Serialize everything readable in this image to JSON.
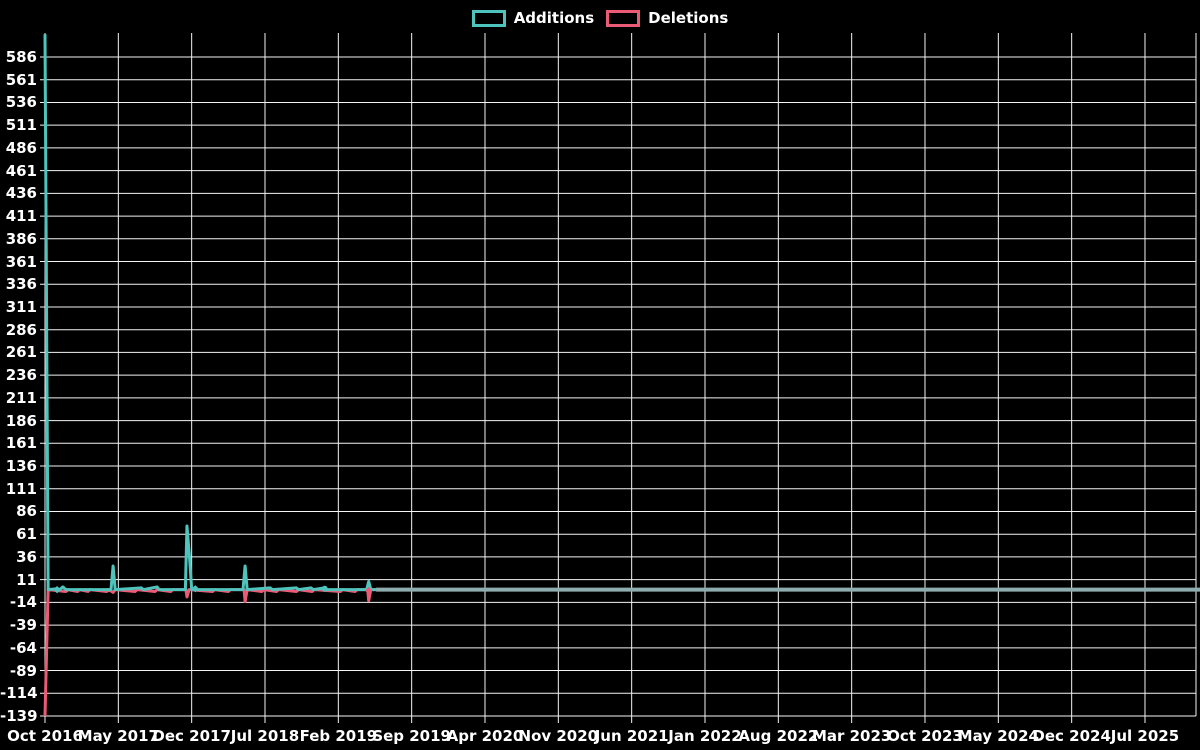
{
  "legend": {
    "items": [
      {
        "label": "Additions",
        "color": "#4fc4bd"
      },
      {
        "label": "Deletions",
        "color": "#ec5b76"
      }
    ]
  },
  "colors": {
    "background": "#000000",
    "grid": "#f4f4f4",
    "text": "#ffffff",
    "additions": "#4fc4bd",
    "deletions": "#ec5b76",
    "inactive_tail": "#8fadae"
  },
  "chart_data": {
    "type": "line",
    "title": "",
    "xlabel": "",
    "ylabel": "",
    "grid": true,
    "legend_position": "top-center",
    "x_axis": {
      "tick_labels": [
        "Oct 2016",
        "May 2017",
        "Dec 2017",
        "Jul 2018",
        "Feb 2019",
        "Sep 2019",
        "Apr 2020",
        "Nov 2020",
        "Jun 2021",
        "Jan 2022",
        "Aug 2022",
        "Mar 2023",
        "Oct 2023",
        "May 2024",
        "Dec 2024",
        "Jul 2025"
      ],
      "months_per_tick": 7,
      "x_unit": "months_since_first_tick",
      "xlim_months": [
        0,
        110.25
      ]
    },
    "y_axis": {
      "tick_labels": [
        586,
        561,
        536,
        511,
        486,
        461,
        436,
        411,
        386,
        361,
        336,
        311,
        286,
        261,
        236,
        211,
        186,
        161,
        136,
        111,
        86,
        61,
        36,
        11,
        -14,
        -39,
        -64,
        -89,
        -114,
        -139
      ],
      "tick_step": 25,
      "ylim": [
        -139,
        611
      ]
    },
    "series": [
      {
        "name": "Additions",
        "color": "#4fc4bd",
        "points": [
          [
            0,
            611
          ],
          [
            0.3,
            0
          ],
          [
            1.15,
            1
          ],
          [
            1.4,
            0
          ],
          [
            1.7,
            3
          ],
          [
            2.0,
            0
          ],
          [
            6.3,
            0
          ],
          [
            6.5,
            26
          ],
          [
            6.7,
            0
          ],
          [
            9.2,
            2
          ],
          [
            9.4,
            0
          ],
          [
            10.7,
            3
          ],
          [
            10.9,
            0
          ],
          [
            13.4,
            0
          ],
          [
            13.55,
            70
          ],
          [
            13.8,
            35
          ],
          [
            14.0,
            0
          ],
          [
            14.35,
            2
          ],
          [
            14.55,
            0
          ],
          [
            18.9,
            0
          ],
          [
            19.1,
            26
          ],
          [
            19.3,
            0
          ],
          [
            21.5,
            2
          ],
          [
            21.7,
            0
          ],
          [
            24.0,
            2
          ],
          [
            24.2,
            0
          ],
          [
            25.4,
            2
          ],
          [
            25.6,
            0
          ],
          [
            26.7,
            2
          ],
          [
            26.9,
            0
          ],
          [
            30.7,
            0
          ],
          [
            30.9,
            9
          ],
          [
            31.1,
            0
          ],
          [
            31.6,
            0
          ]
        ]
      },
      {
        "name": "Deletions",
        "color": "#ec5b76",
        "points": [
          [
            0,
            -139
          ],
          [
            0.3,
            0
          ],
          [
            2.0,
            -2
          ],
          [
            2.2,
            0
          ],
          [
            3.1,
            -2
          ],
          [
            3.3,
            0
          ],
          [
            4.1,
            -2
          ],
          [
            4.3,
            0
          ],
          [
            5.9,
            -2
          ],
          [
            6.1,
            0
          ],
          [
            6.5,
            -3
          ],
          [
            6.7,
            0
          ],
          [
            8.6,
            -2
          ],
          [
            8.8,
            0
          ],
          [
            10.5,
            -2
          ],
          [
            10.7,
            0
          ],
          [
            12.0,
            -2
          ],
          [
            12.2,
            0
          ],
          [
            13.45,
            0
          ],
          [
            13.55,
            -8
          ],
          [
            13.75,
            0
          ],
          [
            16.0,
            -2
          ],
          [
            16.2,
            0
          ],
          [
            17.5,
            -2
          ],
          [
            17.7,
            0
          ],
          [
            19.0,
            0
          ],
          [
            19.1,
            -13
          ],
          [
            19.3,
            0
          ],
          [
            20.7,
            -2
          ],
          [
            20.9,
            0
          ],
          [
            22.1,
            -2
          ],
          [
            22.3,
            0
          ],
          [
            24.0,
            -2
          ],
          [
            24.2,
            0
          ],
          [
            25.5,
            -2
          ],
          [
            25.7,
            0
          ],
          [
            28.2,
            -2
          ],
          [
            28.4,
            0
          ],
          [
            29.6,
            -2
          ],
          [
            29.8,
            0
          ],
          [
            30.8,
            0
          ],
          [
            30.9,
            -12
          ],
          [
            31.1,
            0
          ],
          [
            31.6,
            0
          ]
        ]
      }
    ],
    "point_markers": [
      {
        "series": "Additions",
        "shape": "diamond",
        "m": 1.15,
        "v": 0
      },
      {
        "series": "Additions",
        "shape": "diamond",
        "m": 14.35,
        "v": 1
      },
      {
        "series": "Additions",
        "shape": "circle",
        "m": 26.7,
        "v": 1
      },
      {
        "series": "Deletions",
        "shape": "diamond",
        "m": 30.9,
        "v": -1
      }
    ],
    "inactive_tail": {
      "from_month": 31.6,
      "to_month": 110.25,
      "value": 0,
      "color": "#8fadae"
    }
  }
}
